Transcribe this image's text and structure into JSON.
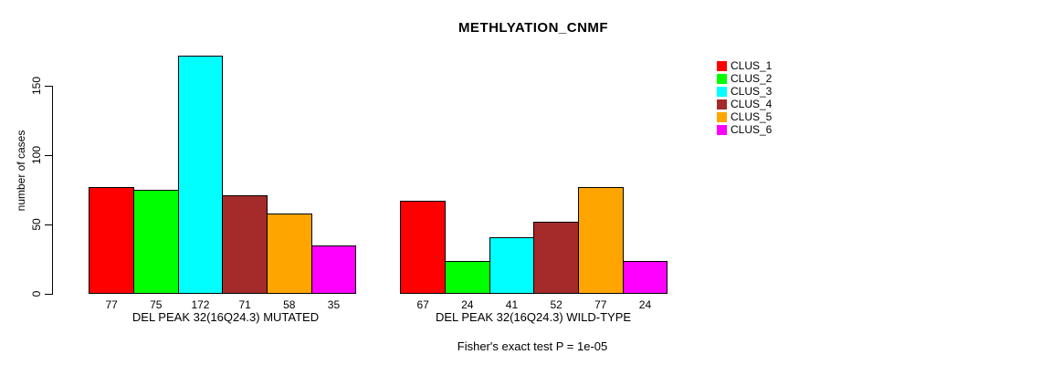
{
  "chart_data": {
    "type": "bar",
    "title": "METHLYATION_CNMF",
    "ylabel": "number of cases",
    "yticks": [
      0,
      50,
      100,
      150
    ],
    "ylim": [
      0,
      172
    ],
    "grid": false,
    "legend_position": "top-right",
    "series_names": [
      "CLUS_1",
      "CLUS_2",
      "CLUS_3",
      "CLUS_4",
      "CLUS_5",
      "CLUS_6"
    ],
    "series_colors": [
      "#FF0000",
      "#00FF00",
      "#00FFFF",
      "#A52A2A",
      "#FFA500",
      "#FF00FF"
    ],
    "groups": [
      {
        "label": "DEL PEAK 32(16Q24.3) MUTATED",
        "values": [
          77,
          75,
          172,
          71,
          58,
          35
        ]
      },
      {
        "label": "DEL PEAK 32(16Q24.3) WILD-TYPE",
        "values": [
          67,
          24,
          41,
          52,
          77,
          24
        ]
      }
    ],
    "annotation": "Fisher's exact test P = 1e-05"
  }
}
